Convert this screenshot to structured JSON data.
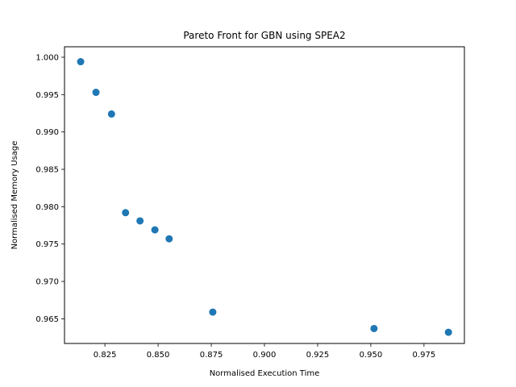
{
  "chart_data": {
    "type": "scatter",
    "title": "Pareto Front for GBN using SPEA2",
    "xlabel": "Normalised Execution Time",
    "ylabel": "Normalised Memory Usage",
    "xlim": [
      0.806,
      0.994
    ],
    "ylim": [
      0.9617,
      1.0014
    ],
    "xticks": [
      0.825,
      0.85,
      0.875,
      0.9,
      0.925,
      0.95,
      0.975
    ],
    "xtick_labels": [
      "0.825",
      "0.850",
      "0.875",
      "0.900",
      "0.925",
      "0.950",
      "0.975"
    ],
    "yticks": [
      0.965,
      0.97,
      0.975,
      0.98,
      0.985,
      0.99,
      0.995,
      1.0
    ],
    "ytick_labels": [
      "0.965",
      "0.970",
      "0.975",
      "0.980",
      "0.985",
      "0.990",
      "0.995",
      "1.000"
    ],
    "grid": false,
    "marker_color": "#1f77b4",
    "series": [
      {
        "points": [
          {
            "x": 0.8136,
            "y": 0.9994
          },
          {
            "x": 0.8208,
            "y": 0.9953
          },
          {
            "x": 0.8281,
            "y": 0.9924
          },
          {
            "x": 0.8347,
            "y": 0.9792
          },
          {
            "x": 0.8415,
            "y": 0.9781
          },
          {
            "x": 0.8485,
            "y": 0.9769
          },
          {
            "x": 0.8552,
            "y": 0.9757
          },
          {
            "x": 0.8757,
            "y": 0.9659
          },
          {
            "x": 0.9515,
            "y": 0.9637
          },
          {
            "x": 0.9865,
            "y": 0.9632
          }
        ]
      }
    ]
  }
}
